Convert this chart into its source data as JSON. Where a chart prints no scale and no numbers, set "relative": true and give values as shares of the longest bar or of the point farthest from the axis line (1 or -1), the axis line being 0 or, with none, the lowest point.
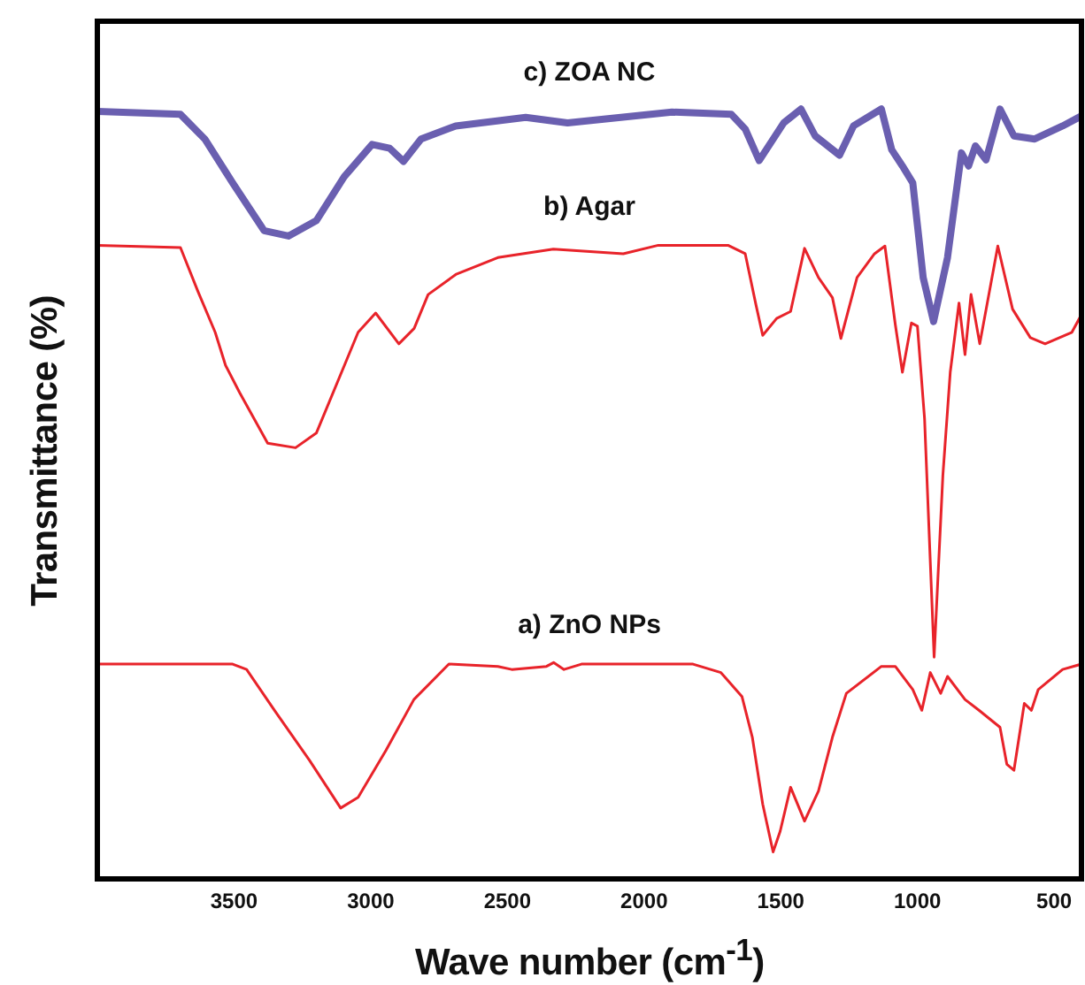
{
  "chart_data": {
    "type": "line",
    "relative": true,
    "xlabel": "Wave number (cm$^{-1}$)",
    "ylabel": "Transmittance (%)",
    "xlim": [
      4000,
      400
    ],
    "xticks": [
      3500,
      3000,
      2500,
      2000,
      1500,
      1000,
      500
    ],
    "grid": false,
    "legend": false,
    "marker": "none",
    "line_style": "solid",
    "tick_labels": "x",
    "series": [
      {
        "name": "c) ZOA NC",
        "color": "#6a5fb0",
        "x": [
          4000,
          3696,
          3607,
          3505,
          3390,
          3301,
          3199,
          3097,
          2995,
          2931,
          2880,
          2816,
          2689,
          2433,
          2280,
          1898,
          1681,
          1630,
          1579,
          1489,
          1426,
          1374,
          1285,
          1234,
          1132,
          1094,
          1055,
          1017,
          979,
          941,
          890,
          839,
          813,
          788,
          749,
          698,
          647,
          571,
          469,
          400
        ],
        "values": [
          0.997,
          0.993,
          0.961,
          0.904,
          0.842,
          0.835,
          0.855,
          0.912,
          0.954,
          0.949,
          0.932,
          0.961,
          0.978,
          0.989,
          0.982,
          0.996,
          0.993,
          0.974,
          0.933,
          0.982,
          1.0,
          0.965,
          0.94,
          0.978,
          1.0,
          0.947,
          0.926,
          0.904,
          0.781,
          0.724,
          0.807,
          0.943,
          0.926,
          0.952,
          0.934,
          1.0,
          0.965,
          0.961,
          0.978,
          0.991
        ]
      },
      {
        "name": "b) Agar",
        "color": "#e8232a",
        "x": [
          4000,
          3696,
          3632,
          3569,
          3531,
          3480,
          3377,
          3275,
          3199,
          3046,
          2982,
          2897,
          2841,
          2790,
          2689,
          2535,
          2332,
          2076,
          1948,
          1693,
          1630,
          1591,
          1566,
          1515,
          1464,
          1413,
          1362,
          1311,
          1280,
          1221,
          1157,
          1119,
          1081,
          1055,
          1022,
          1000,
          974,
          939,
          907,
          880,
          848,
          826,
          804,
          772,
          706,
          652,
          587,
          533,
          435,
          400
        ],
        "values": [
          0.823,
          0.82,
          0.763,
          0.71,
          0.667,
          0.632,
          0.566,
          0.56,
          0.579,
          0.71,
          0.735,
          0.695,
          0.715,
          0.759,
          0.785,
          0.807,
          0.818,
          0.812,
          0.823,
          0.823,
          0.812,
          0.746,
          0.706,
          0.728,
          0.737,
          0.819,
          0.781,
          0.755,
          0.702,
          0.781,
          0.812,
          0.822,
          0.72,
          0.658,
          0.722,
          0.718,
          0.598,
          0.288,
          0.524,
          0.658,
          0.748,
          0.681,
          0.759,
          0.695,
          0.822,
          0.74,
          0.703,
          0.695,
          0.71,
          0.733
        ]
      },
      {
        "name": "a) ZnO NPs",
        "color": "#e8232a",
        "x": [
          4000,
          3505,
          3454,
          3352,
          3224,
          3110,
          3046,
          2944,
          2842,
          2714,
          2535,
          2484,
          2357,
          2331,
          2293,
          2229,
          1821,
          1719,
          1642,
          1604,
          1566,
          1528,
          1502,
          1464,
          1413,
          1362,
          1311,
          1260,
          1132,
          1081,
          1017,
          984,
          953,
          915,
          890,
          826,
          775,
          698,
          673,
          647,
          609,
          583,
          558,
          469,
          400
        ],
        "values": [
          0.279,
          0.279,
          0.272,
          0.219,
          0.154,
          0.092,
          0.106,
          0.167,
          0.233,
          0.279,
          0.276,
          0.272,
          0.276,
          0.281,
          0.272,
          0.279,
          0.279,
          0.268,
          0.237,
          0.184,
          0.097,
          0.035,
          0.062,
          0.119,
          0.075,
          0.114,
          0.184,
          0.241,
          0.276,
          0.276,
          0.246,
          0.219,
          0.268,
          0.241,
          0.263,
          0.233,
          0.219,
          0.197,
          0.149,
          0.141,
          0.228,
          0.219,
          0.246,
          0.272,
          0.279
        ]
      }
    ]
  }
}
